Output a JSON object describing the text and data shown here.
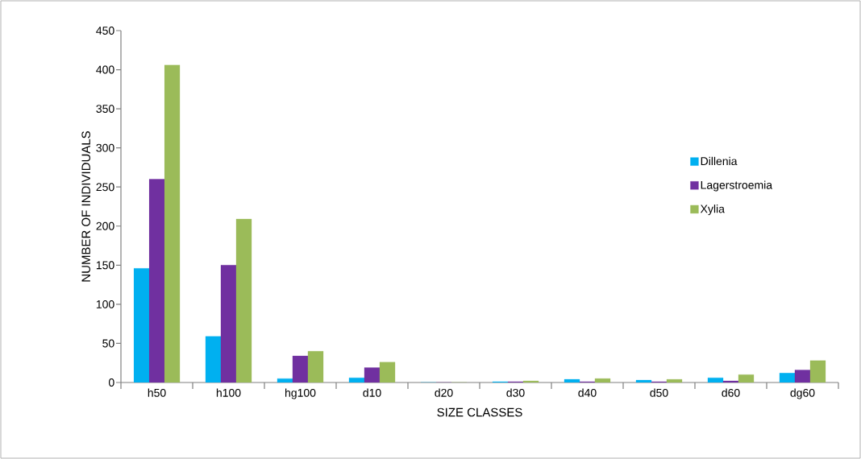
{
  "chart_data": {
    "type": "bar",
    "xlabel": "SIZE CLASSES",
    "ylabel": "NUMBER OF INDIVIDUALS",
    "categories": [
      "h50",
      "h100",
      "hg100",
      "d10",
      "d20",
      "d30",
      "d40",
      "d50",
      "d60",
      "dg60"
    ],
    "series": [
      {
        "name": "Dillenia",
        "color": "#00b0f0",
        "values": [
          146,
          59,
          5,
          6,
          0,
          1,
          4,
          3,
          6,
          12
        ]
      },
      {
        "name": "Lagerstroemia",
        "color": "#7030a0",
        "values": [
          260,
          150,
          34,
          19,
          0,
          1,
          1,
          1,
          2,
          16
        ]
      },
      {
        "name": "Xylia",
        "color": "#9bbb59",
        "values": [
          406,
          209,
          40,
          26,
          0,
          2,
          5,
          4,
          10,
          28
        ]
      }
    ],
    "ylim": [
      0,
      450
    ],
    "yticks": [
      0,
      50,
      100,
      150,
      200,
      250,
      300,
      350,
      400,
      450
    ],
    "legend": "right",
    "grid": false
  }
}
